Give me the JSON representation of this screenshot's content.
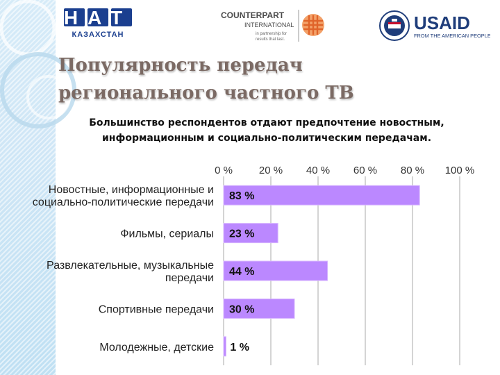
{
  "slide": {
    "title_lines": [
      "Популярность передач",
      "регионального  частного ТВ"
    ],
    "subtitle_lines": [
      "Большинство респондентов отдают предпочтение новостным,",
      "информационным и социально-политическим передачам."
    ]
  },
  "logos": {
    "nat": {
      "big": "НАТ",
      "small": "КАЗАХСТАН"
    },
    "counterpart": {
      "name": "COUNTERPART",
      "sub": "INTERNATIONAL",
      "tag1": "in partnership for",
      "tag2": "results that last."
    },
    "usaid": {
      "name": "USAID",
      "tagline": "FROM THE AMERICAN PEOPLE"
    }
  },
  "colors": {
    "bar": "#bb88ff",
    "grid": "#a8a8a8",
    "title": "#7b6a64"
  },
  "chart_data": {
    "type": "bar",
    "orientation": "horizontal",
    "categories": [
      [
        "Новостные, информационные и",
        "социально-политические передачи"
      ],
      [
        "Фильмы, сериалы"
      ],
      [
        "Развлекательные, музыкальные",
        "передачи"
      ],
      [
        "Спортивные передачи"
      ],
      [
        "Молодежные, детские"
      ]
    ],
    "values": [
      83,
      23,
      44,
      30,
      1
    ],
    "data_labels": [
      "83 %",
      "23 %",
      "44 %",
      "30 %",
      "1 %"
    ],
    "xlim": [
      0,
      100
    ],
    "xticks": [
      0,
      20,
      40,
      60,
      80,
      100
    ],
    "xtick_labels": [
      "0 %",
      "20 %",
      "40 %",
      "60 %",
      "80 %",
      "100 %"
    ],
    "axis_position": "top",
    "grid": true
  }
}
